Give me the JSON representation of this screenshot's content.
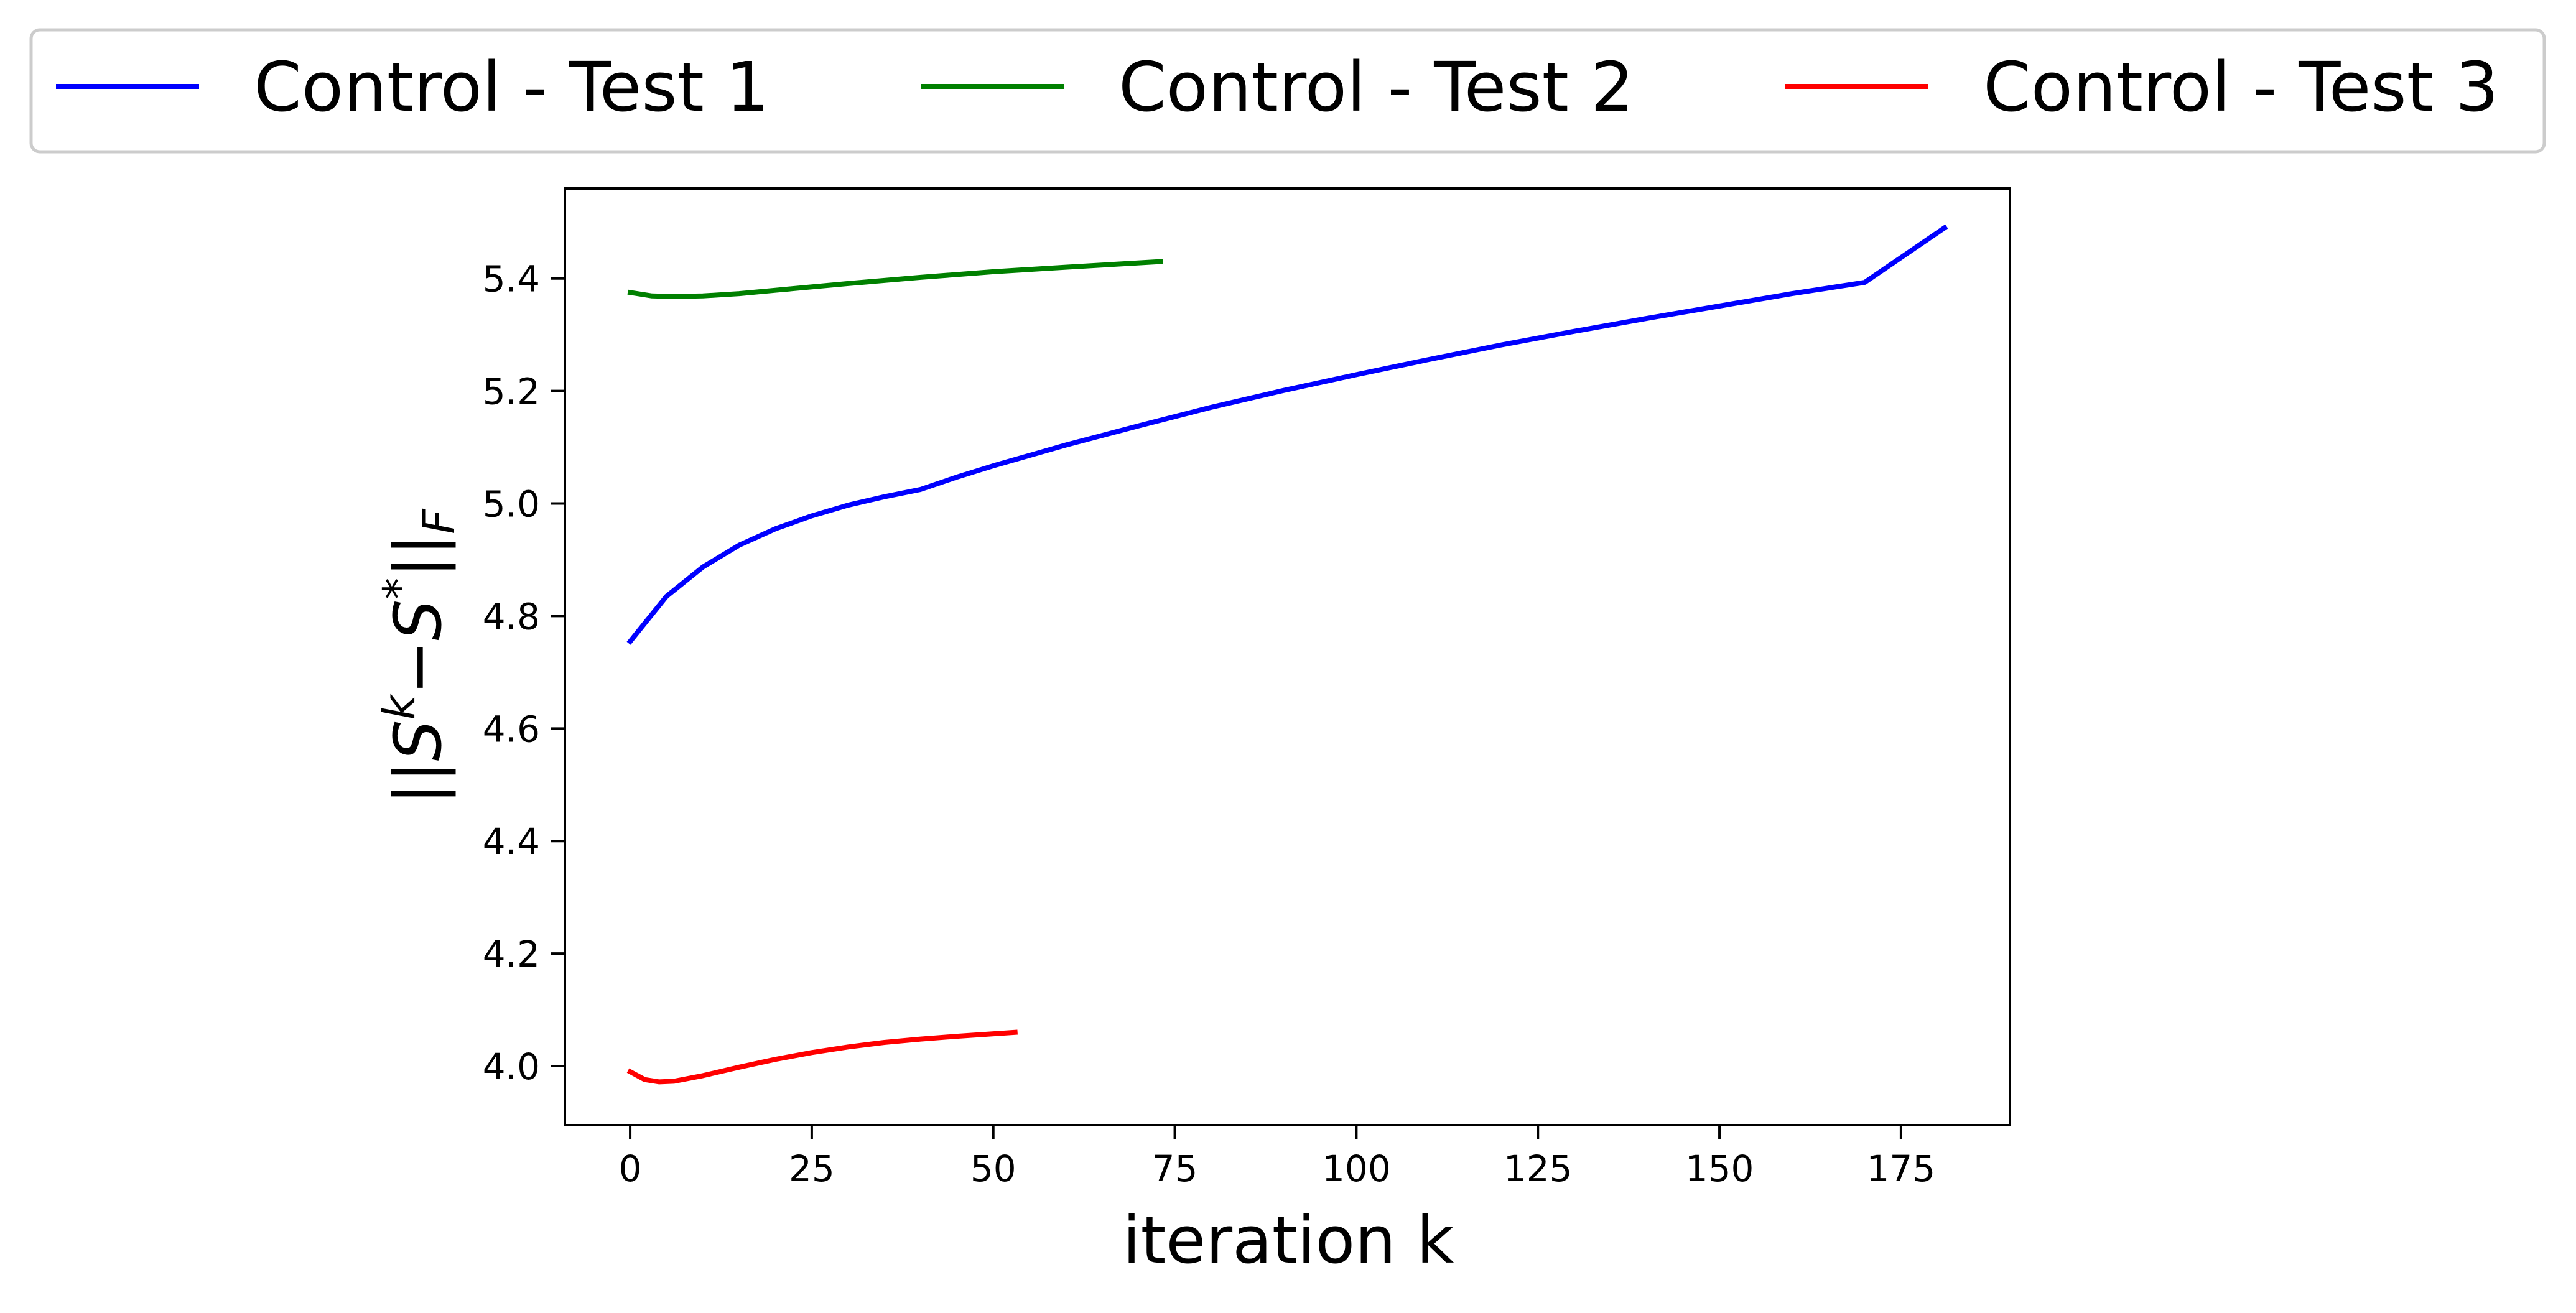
{
  "chart_data": {
    "type": "line",
    "title": "",
    "xlabel": "iteration k",
    "ylabel_parts": {
      "base1": "||",
      "s": "S",
      "k": "k",
      "minus": "−",
      "s2": "S",
      "star": "*",
      "base2": "||",
      "sub": "F"
    },
    "xlim": [
      -9,
      190
    ],
    "ylim": [
      3.895,
      5.56
    ],
    "xticks": [
      0,
      25,
      50,
      75,
      100,
      125,
      150,
      175
    ],
    "yticks": [
      4.0,
      4.2,
      4.4,
      4.6,
      4.8,
      5.0,
      5.2,
      5.4
    ],
    "ytick_labels": [
      "4.0",
      "4.2",
      "4.4",
      "4.6",
      "4.8",
      "5.0",
      "5.2",
      "5.4"
    ],
    "legend_placement": "top-center-outside",
    "grid": false,
    "series": [
      {
        "name": "Control - Test 1",
        "color": "#0000ff",
        "x": [
          0,
          5,
          10,
          15,
          20,
          25,
          30,
          35,
          40,
          45,
          50,
          60,
          70,
          80,
          90,
          100,
          110,
          120,
          130,
          140,
          150,
          160,
          170,
          181
        ],
        "y": [
          4.755,
          4.835,
          4.887,
          4.926,
          4.955,
          4.978,
          4.997,
          5.012,
          5.025,
          5.047,
          5.067,
          5.104,
          5.138,
          5.171,
          5.201,
          5.229,
          5.256,
          5.282,
          5.306,
          5.329,
          5.351,
          5.373,
          5.393,
          5.49
        ]
      },
      {
        "name": "Control - Test 2",
        "color": "#008000",
        "x": [
          0,
          3,
          6,
          10,
          15,
          20,
          30,
          40,
          50,
          60,
          73
        ],
        "y": [
          5.375,
          5.369,
          5.368,
          5.369,
          5.373,
          5.379,
          5.391,
          5.402,
          5.412,
          5.42,
          5.43
        ]
      },
      {
        "name": "Control - Test 3",
        "color": "#ff0000",
        "x": [
          0,
          2,
          4,
          6,
          10,
          15,
          20,
          25,
          30,
          35,
          40,
          45,
          53
        ],
        "y": [
          3.99,
          3.976,
          3.972,
          3.973,
          3.983,
          3.998,
          4.012,
          4.024,
          4.034,
          4.042,
          4.048,
          4.053,
          4.06
        ]
      }
    ]
  }
}
